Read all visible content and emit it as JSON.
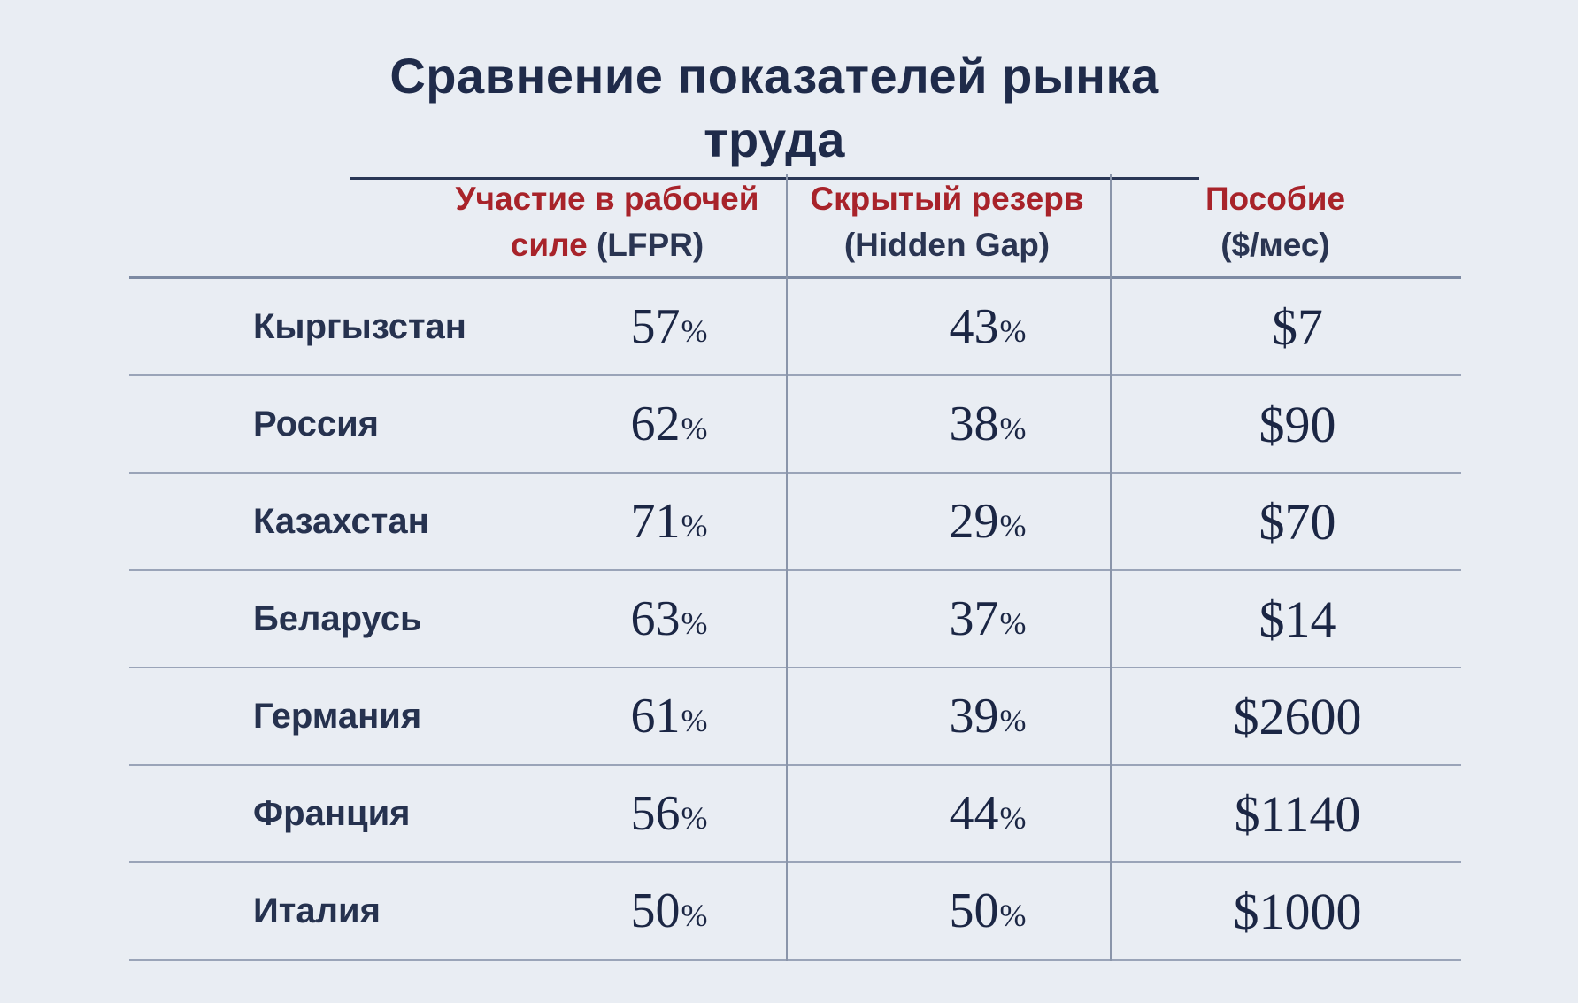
{
  "title": "Сравнение показателей рынка труда",
  "headers": {
    "col1_line1": "Участие в рабочей",
    "col1_line2a": "силе",
    "col1_line2b": "(LFPR)",
    "col2_line1": "Скрытый резерв",
    "col2_line2": "(Hidden Gap)",
    "col3_line1": "Пособие",
    "col3_line2": "($/мес)"
  },
  "rows": [
    {
      "country": "Кыргызстан",
      "lfpr": "57",
      "gap": "43",
      "benefit": "$7"
    },
    {
      "country": "Россия",
      "lfpr": "62",
      "gap": "38",
      "benefit": "$90"
    },
    {
      "country": "Казахстан",
      "lfpr": "71",
      "gap": "29",
      "benefit": "$70"
    },
    {
      "country": "Беларусь",
      "lfpr": "63",
      "gap": "37",
      "benefit": "$14"
    },
    {
      "country": "Германия",
      "lfpr": "61",
      "gap": "39",
      "benefit": "$2600"
    },
    {
      "country": "Франция",
      "lfpr": "56",
      "gap": "44",
      "benefit": "$1140"
    },
    {
      "country": "Италия",
      "lfpr": "50",
      "gap": "50",
      "benefit": "$1000"
    }
  ],
  "percent_sign": "%",
  "colors": {
    "background": "#e9edf3",
    "header_accent": "#a8232a",
    "text": "#1e2a45"
  }
}
